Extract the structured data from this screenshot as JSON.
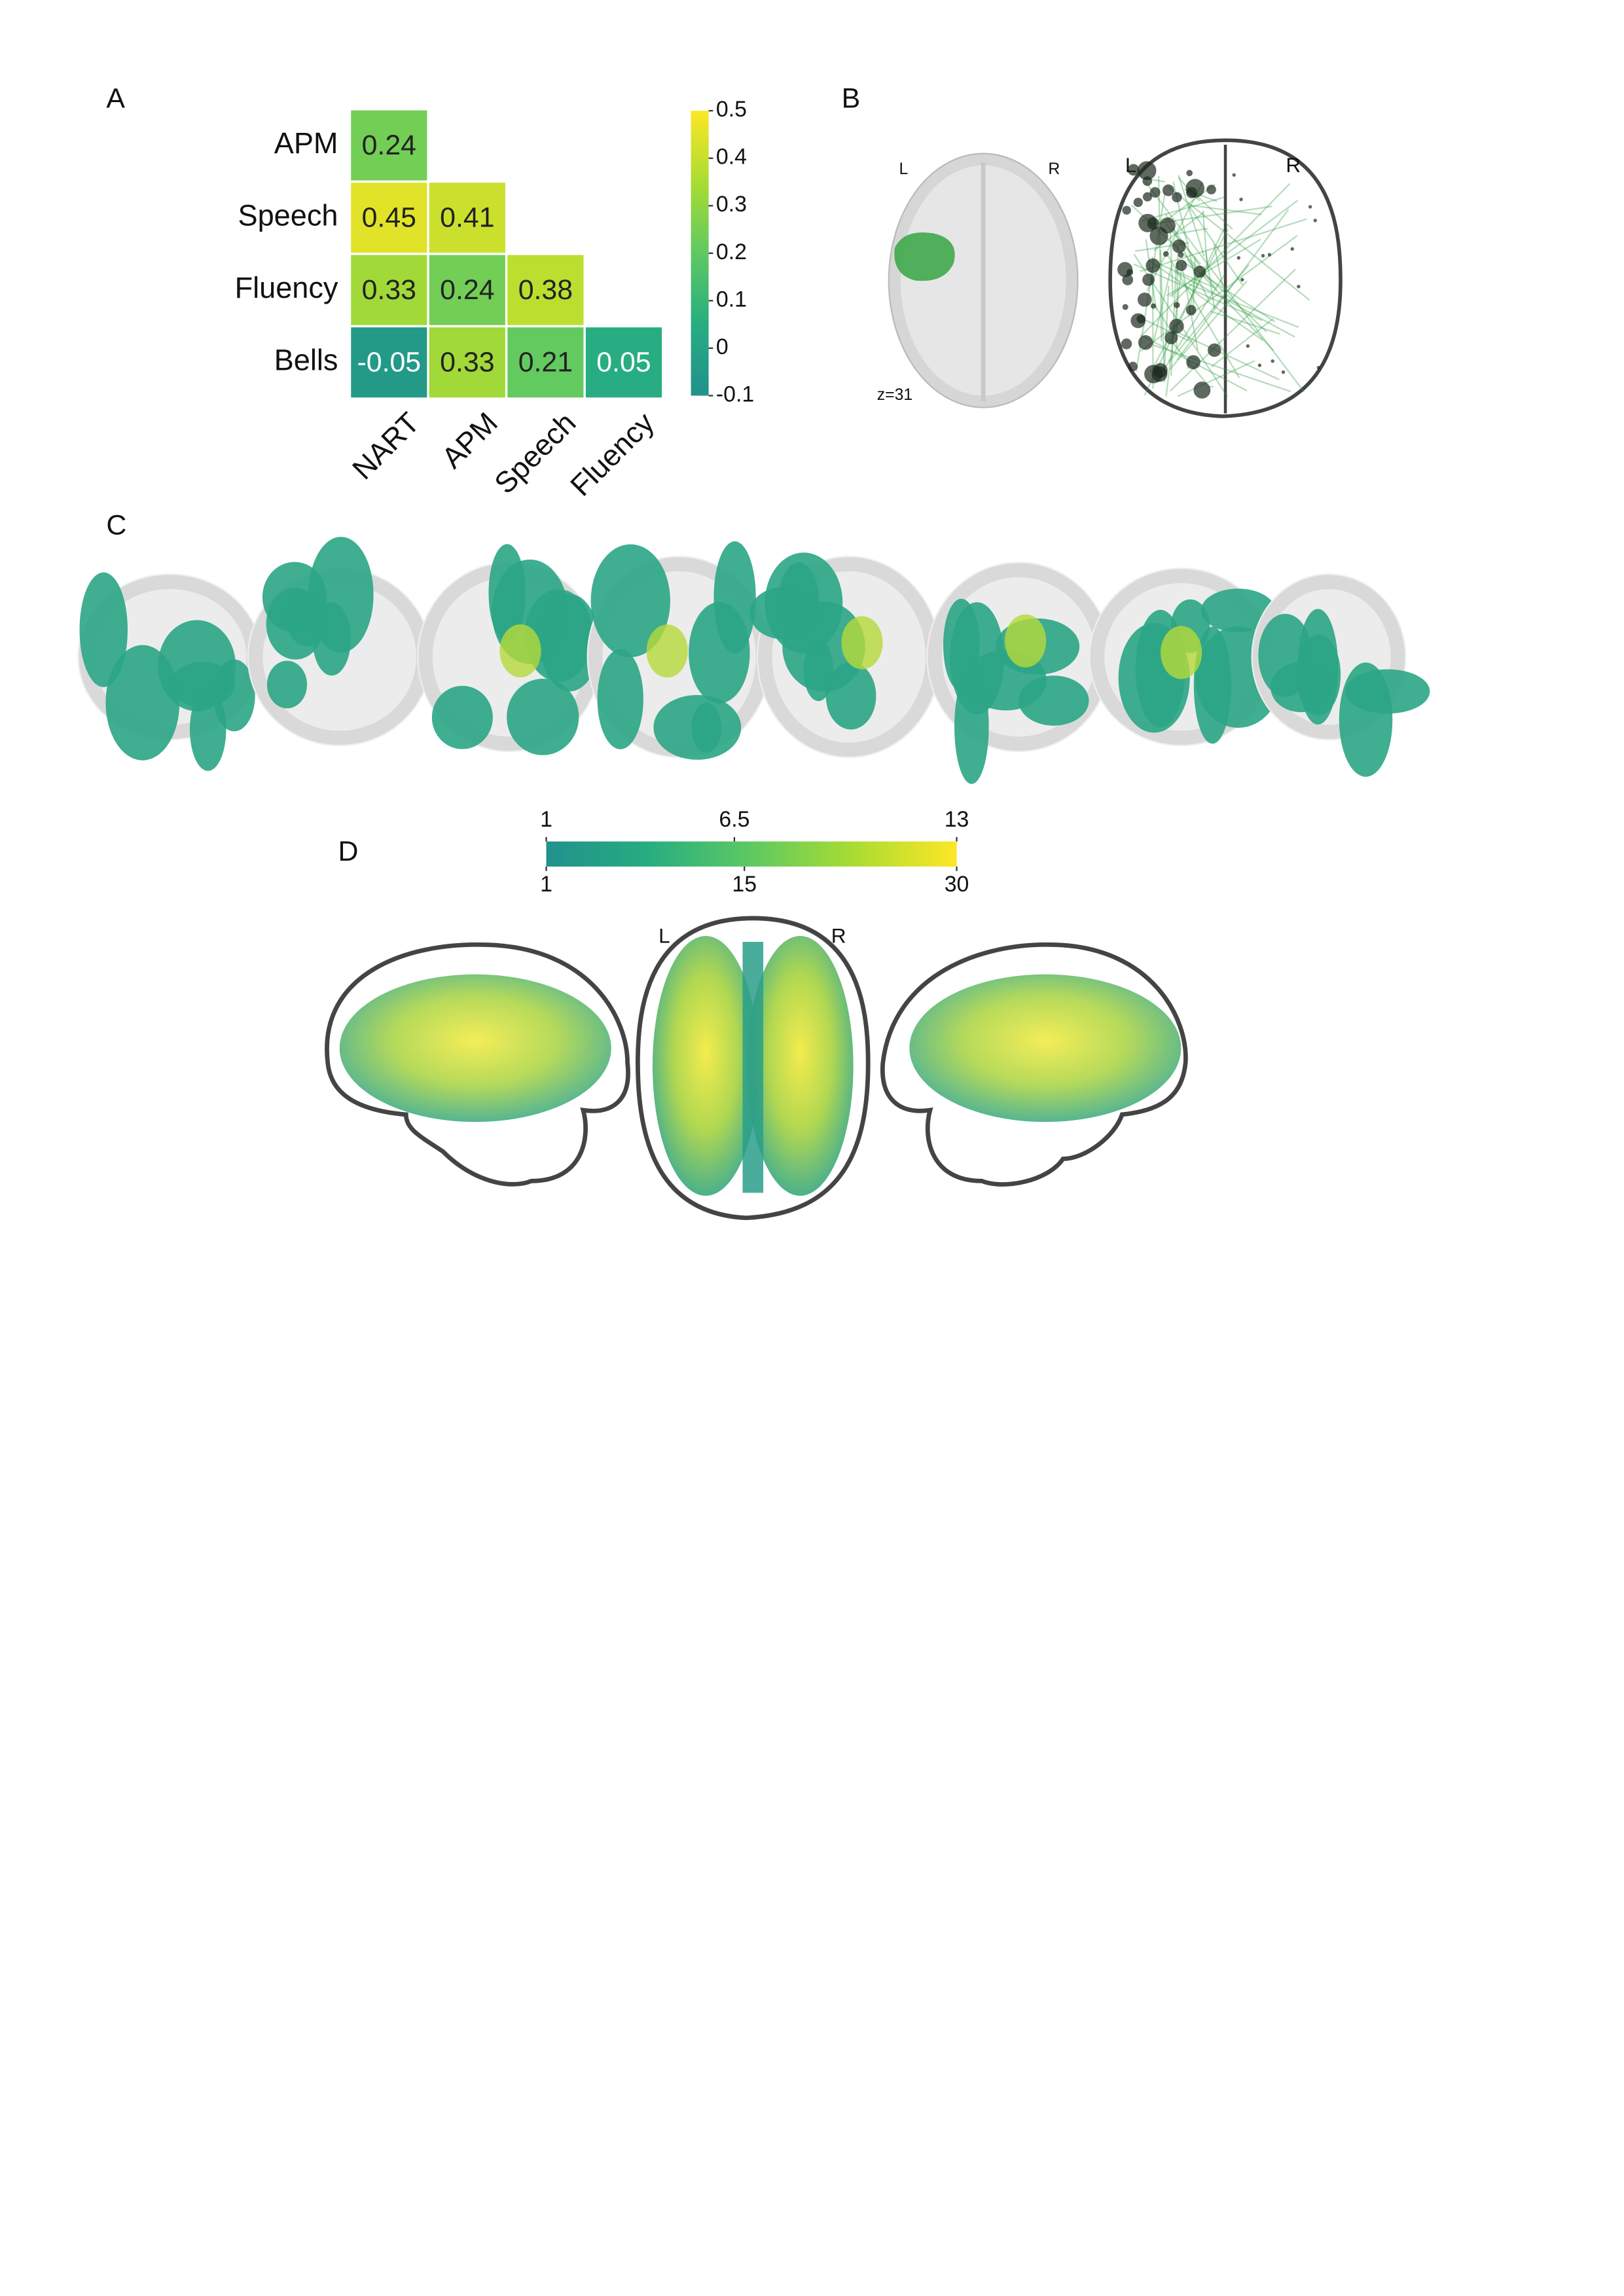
{
  "panel_labels": [
    "A",
    "B",
    "C",
    "D"
  ],
  "chart_data": {
    "type": "heatmap",
    "rows": [
      "APM",
      "Speech",
      "Fluency",
      "Bells"
    ],
    "columns": [
      "NART",
      "APM",
      "Speech",
      "Fluency"
    ],
    "values": [
      [
        0.24,
        null,
        null,
        null
      ],
      [
        0.45,
        0.41,
        null,
        null
      ],
      [
        0.33,
        0.24,
        0.38,
        null
      ],
      [
        -0.05,
        0.33,
        0.21,
        0.05
      ]
    ],
    "colorbar_lim": [
      -0.1,
      0.5
    ],
    "colorbar_ticks": [
      -0.1,
      0,
      0.1,
      0.2,
      0.3,
      0.4,
      0.5
    ],
    "colormap": [
      "#21918c",
      "#27ad81",
      "#5ec962",
      "#aadc32",
      "#fde725"
    ]
  },
  "panel_b": {
    "slice": {
      "left": "L",
      "right": "R",
      "coordinate": "z=31"
    },
    "glass_brain": {
      "left": "L",
      "right": "R"
    }
  },
  "panel_d": {
    "colorbar_top": {
      "lim": [
        1,
        13
      ],
      "ticks": [
        1,
        6.5,
        13
      ]
    },
    "colorbar_bottom": {
      "lim": [
        1,
        30
      ],
      "ticks": [
        1,
        15,
        30
      ]
    },
    "axial": {
      "left": "L",
      "right": "R"
    }
  }
}
